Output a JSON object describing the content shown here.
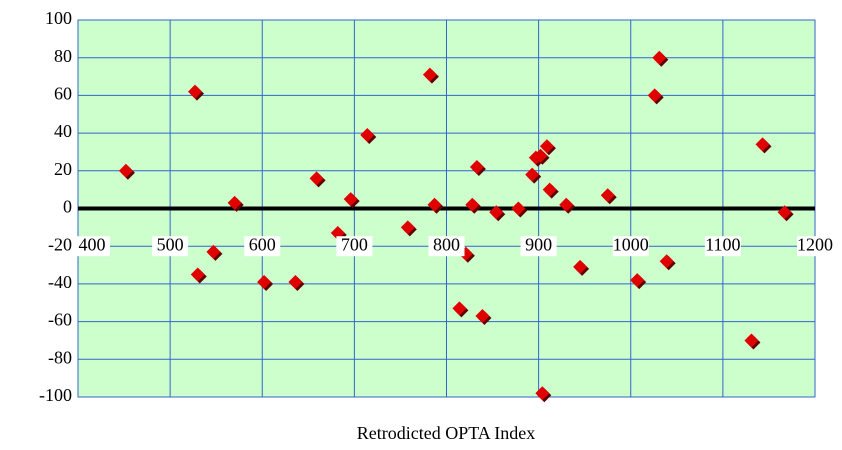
{
  "chart_data": {
    "type": "scatter",
    "x_label": "Retrodicted OPTA Index",
    "x": [
      452,
      527,
      530,
      547,
      570,
      602,
      636,
      659,
      682,
      696,
      714,
      758,
      782,
      787,
      814,
      821,
      828,
      833,
      839,
      854,
      878,
      893,
      897,
      902,
      909,
      912,
      904,
      930,
      945,
      975,
      1007,
      1026,
      1031,
      1039,
      1131,
      1143,
      1167
    ],
    "series": [
      {
        "color": "#e00000",
        "values": [
          20,
          62,
          -35,
          -23,
          3,
          -39,
          -39,
          16,
          -13,
          5,
          39,
          -10,
          71,
          2,
          -53,
          -24,
          2,
          22,
          -57,
          -2,
          0,
          18,
          27,
          28,
          33,
          10,
          -98,
          2,
          -31,
          7,
          -38,
          60,
          80,
          -28,
          -70,
          34,
          -2
        ]
      }
    ],
    "xlim": [
      400,
      1200
    ],
    "xticks": [
      400,
      500,
      600,
      700,
      800,
      900,
      1000,
      1100,
      1200
    ],
    "ylim": [
      -100,
      100
    ],
    "yticks": [
      -100,
      -80,
      -60,
      -40,
      -20,
      0,
      20,
      40,
      60,
      80,
      100
    ],
    "grid": true,
    "plot_background": "#ccffcc",
    "grid_color": "#3366cc"
  }
}
